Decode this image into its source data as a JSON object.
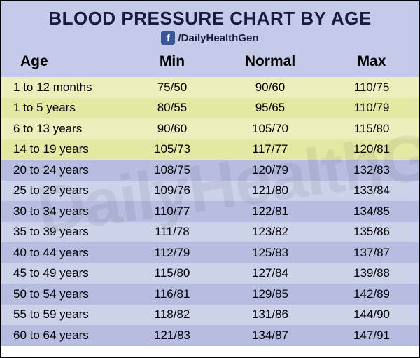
{
  "title": "BLOOD PRESSURE CHART BY AGE",
  "social_handle": "/DailyHealthGen",
  "watermark": "DailyHealthGen",
  "header_bg": "#c4cbe8",
  "columns": [
    "Age",
    "Min",
    "Normal",
    "Max"
  ],
  "row_colors_young": [
    "#eceebc",
    "#e3e8a2"
  ],
  "row_colors_adult": [
    "#b6bde0",
    "#cdd2eb"
  ],
  "rows": [
    {
      "age": "1 to 12 months",
      "min": "75/50",
      "normal": "90/60",
      "max": "110/75",
      "bg": "#eceebc"
    },
    {
      "age": "1 to 5 years",
      "min": "80/55",
      "normal": "95/65",
      "max": "110/79",
      "bg": "#e3e8a2"
    },
    {
      "age": "6 to 13 years",
      "min": "90/60",
      "normal": "105/70",
      "max": "115/80",
      "bg": "#eceebc"
    },
    {
      "age": "14 to 19 years",
      "min": "105/73",
      "normal": "117/77",
      "max": "120/81",
      "bg": "#e3e8a2"
    },
    {
      "age": "20 to 24 years",
      "min": "108/75",
      "normal": "120/79",
      "max": "132/83",
      "bg": "#b6bde0"
    },
    {
      "age": "25 to 29 years",
      "min": "109/76",
      "normal": "121/80",
      "max": "133/84",
      "bg": "#cdd2eb"
    },
    {
      "age": "30 to 34 years",
      "min": "110/77",
      "normal": "122/81",
      "max": "134/85",
      "bg": "#b6bde0"
    },
    {
      "age": "35 to 39 years",
      "min": "111/78",
      "normal": "123/82",
      "max": "135/86",
      "bg": "#cdd2eb"
    },
    {
      "age": "40 to 44 years",
      "min": "112/79",
      "normal": "125/83",
      "max": "137/87",
      "bg": "#b6bde0"
    },
    {
      "age": "45 to 49 years",
      "min": "115/80",
      "normal": "127/84",
      "max": "139/88",
      "bg": "#cdd2eb"
    },
    {
      "age": "50 to 54 years",
      "min": "116/81",
      "normal": "129/85",
      "max": "142/89",
      "bg": "#b6bde0"
    },
    {
      "age": "55 to 59 years",
      "min": "118/82",
      "normal": "131/86",
      "max": "144/90",
      "bg": "#cdd2eb"
    },
    {
      "age": "60 to 64 years",
      "min": "121/83",
      "normal": "134/87",
      "max": "147/91",
      "bg": "#b6bde0"
    }
  ]
}
